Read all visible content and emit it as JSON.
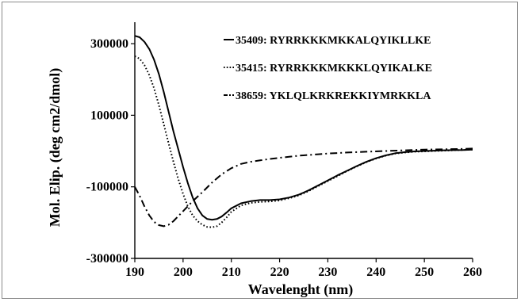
{
  "chart_data": {
    "type": "line",
    "title": "",
    "xlabel": "Wavelenght (nm)",
    "ylabel": "Mol. Elip. (deg cm2/dmol)",
    "xlim": [
      190,
      260
    ],
    "ylim": [
      -300000,
      360000
    ],
    "x_ticks": [
      190,
      200,
      210,
      220,
      230,
      240,
      250,
      260
    ],
    "y_ticks": [
      -300000,
      -100000,
      100000,
      300000
    ],
    "grid": false,
    "legend_position": "top-right",
    "series": [
      {
        "name": "35409: RYRRKKKMKKALQYIKLLKE",
        "style": "solid",
        "color": "#000000",
        "x": [
          190,
          191,
          192,
          193,
          194,
          195,
          196,
          197,
          198,
          199,
          200,
          201,
          202,
          203,
          204,
          205,
          206,
          207,
          208,
          209,
          210,
          212,
          214,
          216,
          218,
          220,
          222,
          224,
          226,
          228,
          230,
          232,
          234,
          236,
          238,
          240,
          242,
          244,
          246,
          248,
          250,
          252,
          254,
          256,
          258,
          260
        ],
        "y": [
          322000,
          318000,
          305000,
          285000,
          255000,
          215000,
          165000,
          110000,
          55000,
          5000,
          -45000,
          -90000,
          -130000,
          -160000,
          -180000,
          -190000,
          -192000,
          -190000,
          -183000,
          -172000,
          -160000,
          -146000,
          -140000,
          -137000,
          -137000,
          -135000,
          -130000,
          -122000,
          -110000,
          -96000,
          -82000,
          -68000,
          -55000,
          -42000,
          -30000,
          -20000,
          -12000,
          -6000,
          -3000,
          -1000,
          0,
          1000,
          2000,
          2500,
          3000,
          4000
        ]
      },
      {
        "name": "35415: RYRRKKKMKKKLQYIKALKE",
        "style": "dotted",
        "color": "#000000",
        "x": [
          190,
          191,
          192,
          193,
          194,
          195,
          196,
          197,
          198,
          199,
          200,
          201,
          202,
          203,
          204,
          205,
          206,
          207,
          208,
          209,
          210,
          212,
          214,
          216,
          218,
          220,
          222,
          224,
          226,
          228,
          230,
          232,
          234,
          236,
          238,
          240,
          242,
          244,
          246,
          248,
          250,
          252,
          254,
          256,
          258,
          260
        ],
        "y": [
          265000,
          258000,
          240000,
          212000,
          175000,
          128000,
          75000,
          22000,
          -30000,
          -78000,
          -120000,
          -155000,
          -180000,
          -196000,
          -206000,
          -212000,
          -213000,
          -210000,
          -200000,
          -186000,
          -170000,
          -152000,
          -145000,
          -142000,
          -141000,
          -138000,
          -132000,
          -124000,
          -112000,
          -98000,
          -84000,
          -70000,
          -56000,
          -43000,
          -31000,
          -21000,
          -13000,
          -7000,
          -4000,
          -2000,
          -1000,
          0,
          1000,
          2000,
          3000,
          4000
        ]
      },
      {
        "name": "38659: YKLQLKRKREKKIYMRKKLA",
        "style": "dashdot",
        "color": "#000000",
        "x": [
          190,
          191,
          192,
          193,
          194,
          195,
          196,
          197,
          198,
          199,
          200,
          202,
          204,
          206,
          208,
          210,
          212,
          214,
          216,
          218,
          220,
          222,
          224,
          226,
          228,
          230,
          234,
          238,
          242,
          246,
          250,
          254,
          258,
          260
        ],
        "y": [
          -100000,
          -125000,
          -155000,
          -180000,
          -198000,
          -207000,
          -210000,
          -206000,
          -196000,
          -182000,
          -168000,
          -140000,
          -115000,
          -88000,
          -65000,
          -48000,
          -36000,
          -30000,
          -26000,
          -22000,
          -19000,
          -16000,
          -13000,
          -11000,
          -9000,
          -7000,
          -4000,
          -2000,
          0,
          2000,
          4000,
          5000,
          6000,
          7000
        ]
      }
    ]
  }
}
